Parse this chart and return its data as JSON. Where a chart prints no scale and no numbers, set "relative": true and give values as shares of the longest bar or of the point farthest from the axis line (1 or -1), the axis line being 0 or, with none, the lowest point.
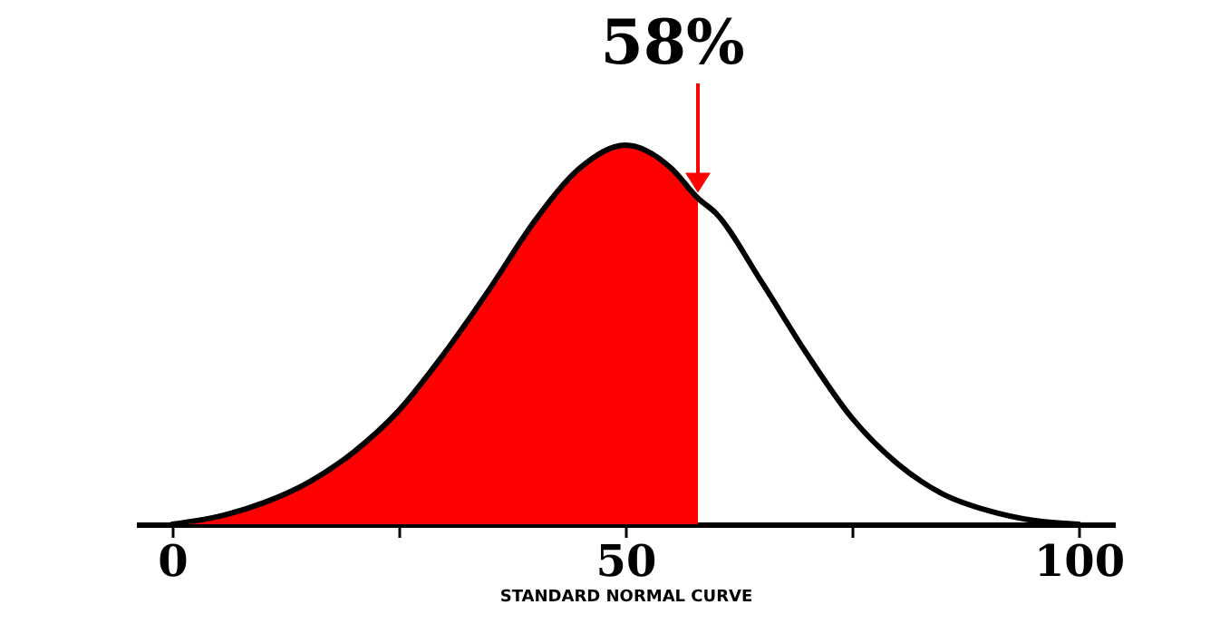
{
  "chart_data": {
    "type": "line",
    "relative": true,
    "xlabel": "STANDARD NORMAL CURVE",
    "xlim": [
      -4,
      104
    ],
    "xticks": [
      0,
      {
        "value": 25,
        "label": null
      },
      50,
      {
        "value": 75,
        "label": null
      },
      100
    ],
    "grid": false,
    "marker": "none",
    "annotations": [
      {
        "text": "58%",
        "x": 58,
        "y": 0.86
      }
    ],
    "series": [
      {
        "type": "area",
        "color": "#ff0000",
        "x": [
          0,
          5,
          10,
          15,
          20,
          25,
          30,
          35,
          40,
          45,
          50,
          55,
          58
        ],
        "values": [
          0,
          0.02,
          0.056,
          0.11,
          0.19,
          0.3,
          0.45,
          0.62,
          0.8,
          0.94,
          1,
          0.94,
          0.86
        ]
      },
      {
        "type": "line",
        "color": "#000000",
        "x": [
          0,
          5,
          10,
          15,
          20,
          25,
          30,
          35,
          40,
          45,
          50,
          55,
          58,
          60,
          65,
          70,
          75,
          80,
          85,
          90,
          95,
          100
        ],
        "values": [
          0,
          0.02,
          0.056,
          0.11,
          0.19,
          0.3,
          0.45,
          0.62,
          0.8,
          0.94,
          1,
          0.94,
          0.86,
          0.82,
          0.64,
          0.45,
          0.28,
          0.16,
          0.08,
          0.036,
          0.01,
          0
        ]
      }
    ]
  }
}
